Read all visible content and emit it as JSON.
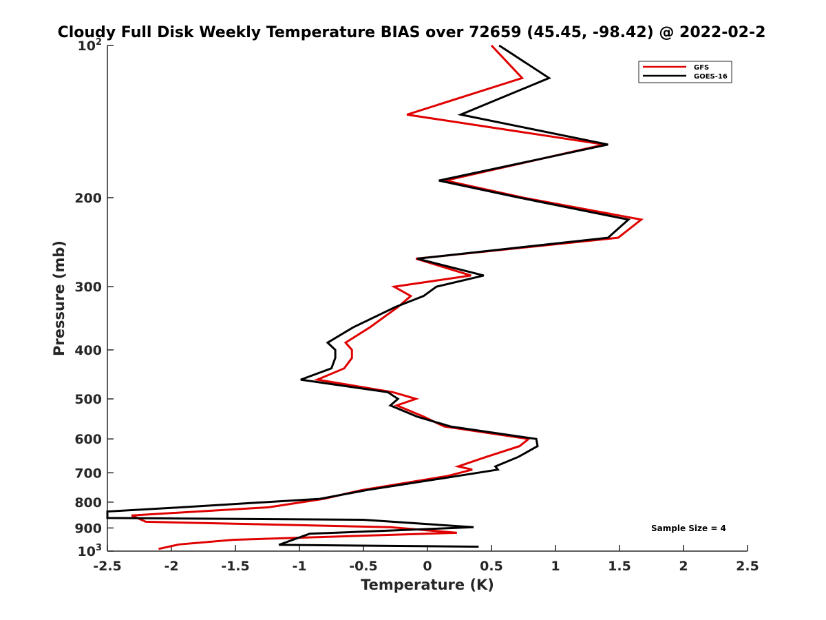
{
  "chart_data": {
    "type": "line",
    "title": "Cloudy Full Disk Weekly Temperature BIAS over 72659 (45.45, -98.42) @ 2022-02-2",
    "xlabel": "Temperature (K)",
    "ylabel": "Pressure (mb)",
    "xlim": [
      -2.5,
      2.5
    ],
    "ylim": [
      100,
      1000
    ],
    "y_scale": "log",
    "y_reversed": true,
    "x_ticks": [
      "-2.5",
      "-2",
      "-1.5",
      "-1",
      "-0.5",
      "0",
      "0.5",
      "1",
      "1.5",
      "2",
      "2.5"
    ],
    "x_tick_values": [
      -2.5,
      -2,
      -1.5,
      -1,
      -0.5,
      0,
      0.5,
      1,
      1.5,
      2,
      2.5
    ],
    "y_ticks": [
      {
        "value": 100,
        "label": "10",
        "sup": "2"
      },
      {
        "value": 200,
        "label": "200",
        "sup": ""
      },
      {
        "value": 300,
        "label": "300",
        "sup": ""
      },
      {
        "value": 400,
        "label": "400",
        "sup": ""
      },
      {
        "value": 500,
        "label": "500",
        "sup": ""
      },
      {
        "value": 600,
        "label": "600",
        "sup": ""
      },
      {
        "value": 700,
        "label": "700",
        "sup": ""
      },
      {
        "value": 800,
        "label": "800",
        "sup": ""
      },
      {
        "value": 900,
        "label": "900",
        "sup": ""
      },
      {
        "value": 1000,
        "label": "10",
        "sup": "3"
      }
    ],
    "grid": false,
    "legend_position": "top-right",
    "annotation": "Sample Size = 4",
    "series": [
      {
        "name": "GFS",
        "color": "#e00000",
        "points": [
          [
            0.5,
            100
          ],
          [
            0.74,
            116
          ],
          [
            -0.16,
            137
          ],
          [
            1.38,
            157
          ],
          [
            0.14,
            185
          ],
          [
            0.75,
            200
          ],
          [
            1.67,
            221
          ],
          [
            1.49,
            240
          ],
          [
            -0.09,
            264
          ],
          [
            0.34,
            285
          ],
          [
            -0.26,
            300
          ],
          [
            -0.13,
            313
          ],
          [
            -0.23,
            329
          ],
          [
            -0.45,
            361
          ],
          [
            -0.64,
            387
          ],
          [
            -0.59,
            400
          ],
          [
            -0.59,
            415
          ],
          [
            -0.65,
            435
          ],
          [
            -0.86,
            458
          ],
          [
            -0.27,
            485
          ],
          [
            -0.09,
            500
          ],
          [
            -0.24,
            515
          ],
          [
            -0.03,
            542
          ],
          [
            0.13,
            567
          ],
          [
            0.79,
            600
          ],
          [
            0.72,
            620
          ],
          [
            0.46,
            651
          ],
          [
            0.24,
            680
          ],
          [
            0.35,
            690
          ],
          [
            0.16,
            710
          ],
          [
            -0.51,
            757
          ],
          [
            -0.81,
            788
          ],
          [
            -1.24,
            819
          ],
          [
            -2.31,
            850
          ],
          [
            -2.2,
            875
          ],
          [
            -0.29,
            897
          ],
          [
            0.23,
            920
          ],
          [
            -1.52,
            950
          ],
          [
            -1.94,
            970
          ],
          [
            -2.1,
            990
          ]
        ]
      },
      {
        "name": "GOES-16",
        "color": "#000000",
        "points": [
          [
            0.56,
            100
          ],
          [
            0.95,
            116
          ],
          [
            0.26,
            137
          ],
          [
            1.41,
            157
          ],
          [
            0.09,
            185
          ],
          [
            0.72,
            200
          ],
          [
            1.57,
            221
          ],
          [
            1.41,
            240
          ],
          [
            -0.08,
            264
          ],
          [
            0.44,
            285
          ],
          [
            0.07,
            300
          ],
          [
            -0.03,
            313
          ],
          [
            -0.25,
            329
          ],
          [
            -0.58,
            361
          ],
          [
            -0.78,
            387
          ],
          [
            -0.72,
            400
          ],
          [
            -0.72,
            415
          ],
          [
            -0.75,
            435
          ],
          [
            -0.99,
            458
          ],
          [
            -0.31,
            485
          ],
          [
            -0.23,
            500
          ],
          [
            -0.29,
            515
          ],
          [
            -0.08,
            542
          ],
          [
            0.18,
            567
          ],
          [
            0.85,
            600
          ],
          [
            0.86,
            620
          ],
          [
            0.71,
            651
          ],
          [
            0.53,
            680
          ],
          [
            0.55,
            690
          ],
          [
            0.24,
            710
          ],
          [
            -0.47,
            757
          ],
          [
            -0.84,
            788
          ],
          [
            -1.92,
            819
          ],
          [
            -2.5,
            835
          ],
          [
            -2.5,
            860
          ],
          [
            -0.5,
            867
          ],
          [
            0.36,
            897
          ],
          [
            -0.92,
            924
          ],
          [
            -1.16,
            972
          ],
          [
            0.4,
            980
          ]
        ]
      }
    ]
  }
}
